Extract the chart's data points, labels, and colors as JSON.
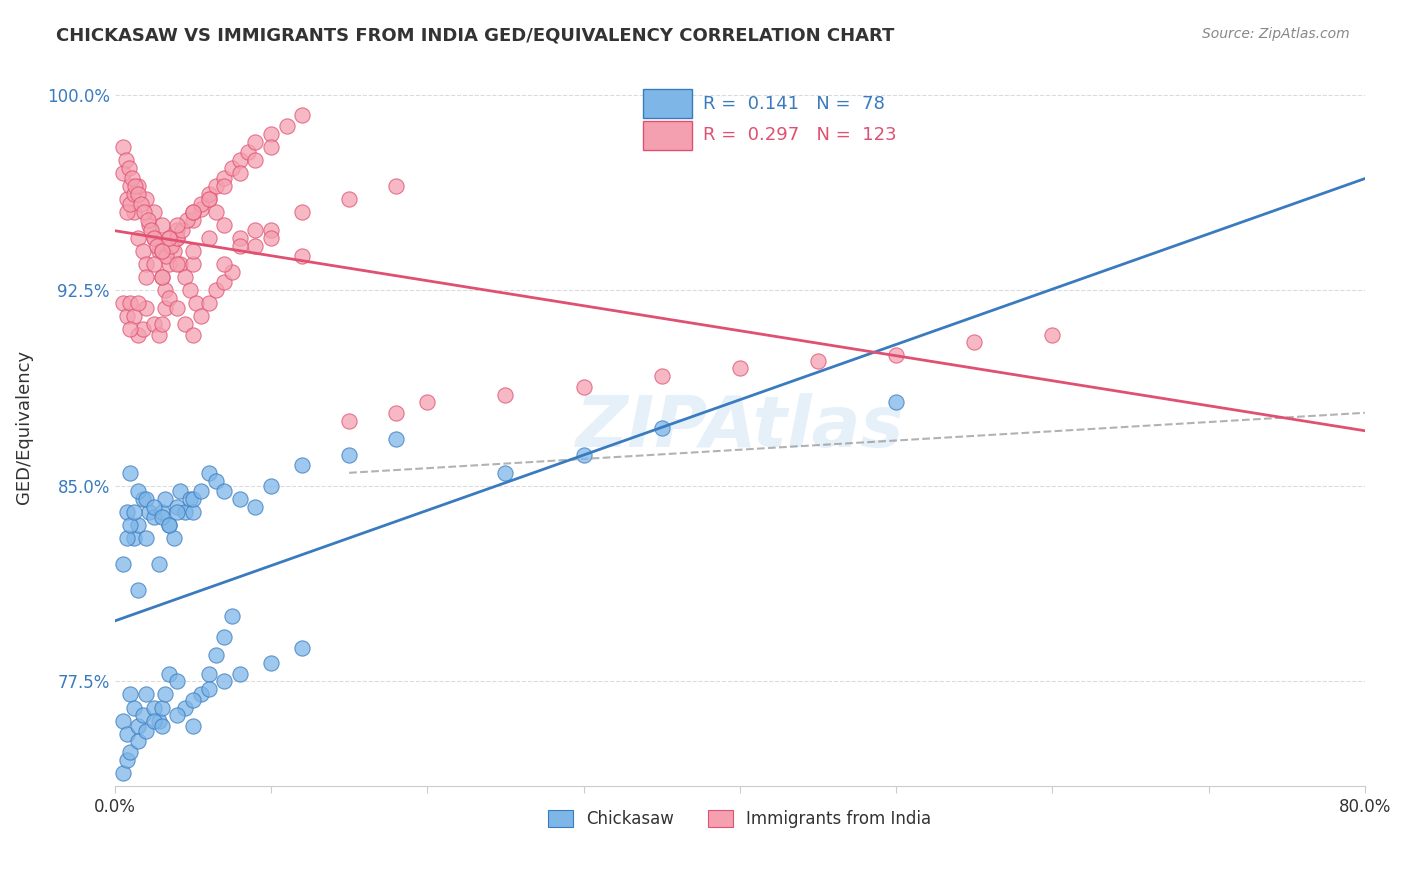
{
  "title": "CHICKASAW VS IMMIGRANTS FROM INDIA GED/EQUIVALENCY CORRELATION CHART",
  "source": "Source: ZipAtlas.com",
  "ylabel": "GED/Equivalency",
  "xlabel": "",
  "xlim": [
    0.0,
    0.8
  ],
  "ylim": [
    0.735,
    1.01
  ],
  "yticks": [
    0.775,
    0.85,
    0.925,
    1.0
  ],
  "ytick_labels": [
    "77.5%",
    "85.0%",
    "92.5%",
    "100.0%"
  ],
  "xticks": [
    0.0,
    0.1,
    0.2,
    0.3,
    0.4,
    0.5,
    0.6,
    0.7,
    0.8
  ],
  "xtick_labels": [
    "0.0%",
    "",
    "",
    "",
    "",
    "",
    "",
    "",
    "80.0%"
  ],
  "blue_R": 0.141,
  "blue_N": 78,
  "pink_R": 0.297,
  "pink_N": 123,
  "blue_color": "#7eb6e8",
  "pink_color": "#f4a0b0",
  "blue_line_color": "#3a7bbf",
  "pink_line_color": "#e05070",
  "legend_blue_label": "Chickasaw",
  "legend_pink_label": "Immigrants from India",
  "watermark": "ZIPAtlas",
  "blue_scatter_x": [
    0.005,
    0.008,
    0.01,
    0.012,
    0.015,
    0.015,
    0.018,
    0.02,
    0.022,
    0.025,
    0.028,
    0.03,
    0.032,
    0.035,
    0.038,
    0.04,
    0.042,
    0.045,
    0.048,
    0.05,
    0.005,
    0.008,
    0.01,
    0.012,
    0.015,
    0.018,
    0.02,
    0.025,
    0.028,
    0.03,
    0.032,
    0.035,
    0.04,
    0.045,
    0.05,
    0.055,
    0.06,
    0.065,
    0.07,
    0.075,
    0.008,
    0.01,
    0.012,
    0.015,
    0.02,
    0.025,
    0.03,
    0.035,
    0.04,
    0.05,
    0.055,
    0.06,
    0.065,
    0.07,
    0.08,
    0.09,
    0.1,
    0.12,
    0.15,
    0.18,
    0.005,
    0.008,
    0.01,
    0.015,
    0.02,
    0.025,
    0.03,
    0.04,
    0.05,
    0.06,
    0.07,
    0.08,
    0.1,
    0.12,
    0.25,
    0.3,
    0.35,
    0.5
  ],
  "blue_scatter_y": [
    0.82,
    0.84,
    0.855,
    0.83,
    0.81,
    0.835,
    0.845,
    0.83,
    0.84,
    0.838,
    0.82,
    0.84,
    0.845,
    0.835,
    0.83,
    0.842,
    0.848,
    0.84,
    0.845,
    0.84,
    0.76,
    0.755,
    0.77,
    0.765,
    0.758,
    0.762,
    0.77,
    0.765,
    0.76,
    0.765,
    0.77,
    0.778,
    0.775,
    0.765,
    0.758,
    0.77,
    0.778,
    0.785,
    0.792,
    0.8,
    0.83,
    0.835,
    0.84,
    0.848,
    0.845,
    0.842,
    0.838,
    0.835,
    0.84,
    0.845,
    0.848,
    0.855,
    0.852,
    0.848,
    0.845,
    0.842,
    0.85,
    0.858,
    0.862,
    0.868,
    0.74,
    0.745,
    0.748,
    0.752,
    0.756,
    0.76,
    0.758,
    0.762,
    0.768,
    0.772,
    0.775,
    0.778,
    0.782,
    0.788,
    0.855,
    0.862,
    0.872,
    0.882
  ],
  "pink_scatter_x": [
    0.005,
    0.008,
    0.01,
    0.012,
    0.015,
    0.018,
    0.02,
    0.022,
    0.025,
    0.028,
    0.03,
    0.032,
    0.035,
    0.038,
    0.04,
    0.042,
    0.045,
    0.048,
    0.05,
    0.052,
    0.005,
    0.008,
    0.01,
    0.012,
    0.015,
    0.018,
    0.02,
    0.025,
    0.028,
    0.03,
    0.032,
    0.035,
    0.04,
    0.045,
    0.05,
    0.055,
    0.06,
    0.065,
    0.07,
    0.075,
    0.008,
    0.01,
    0.012,
    0.015,
    0.02,
    0.025,
    0.03,
    0.035,
    0.04,
    0.05,
    0.055,
    0.06,
    0.065,
    0.07,
    0.08,
    0.09,
    0.1,
    0.12,
    0.15,
    0.18,
    0.005,
    0.007,
    0.009,
    0.011,
    0.013,
    0.015,
    0.017,
    0.019,
    0.021,
    0.023,
    0.025,
    0.027,
    0.03,
    0.033,
    0.036,
    0.04,
    0.043,
    0.046,
    0.05,
    0.055,
    0.06,
    0.065,
    0.07,
    0.075,
    0.08,
    0.085,
    0.09,
    0.1,
    0.11,
    0.12,
    0.03,
    0.04,
    0.05,
    0.06,
    0.07,
    0.08,
    0.09,
    0.1,
    0.12,
    0.15,
    0.18,
    0.2,
    0.25,
    0.3,
    0.35,
    0.4,
    0.45,
    0.5,
    0.55,
    0.6,
    0.01,
    0.015,
    0.02,
    0.025,
    0.03,
    0.035,
    0.04,
    0.05,
    0.06,
    0.07,
    0.08,
    0.09,
    0.1
  ],
  "pink_scatter_y": [
    0.97,
    0.96,
    0.965,
    0.955,
    0.945,
    0.94,
    0.935,
    0.95,
    0.945,
    0.94,
    0.93,
    0.925,
    0.935,
    0.94,
    0.945,
    0.935,
    0.93,
    0.925,
    0.935,
    0.92,
    0.92,
    0.915,
    0.92,
    0.915,
    0.908,
    0.91,
    0.918,
    0.912,
    0.908,
    0.912,
    0.918,
    0.922,
    0.918,
    0.912,
    0.908,
    0.915,
    0.92,
    0.925,
    0.928,
    0.932,
    0.955,
    0.958,
    0.962,
    0.965,
    0.96,
    0.955,
    0.95,
    0.945,
    0.948,
    0.952,
    0.956,
    0.96,
    0.955,
    0.95,
    0.945,
    0.942,
    0.948,
    0.955,
    0.96,
    0.965,
    0.98,
    0.975,
    0.972,
    0.968,
    0.965,
    0.962,
    0.958,
    0.955,
    0.952,
    0.948,
    0.945,
    0.942,
    0.94,
    0.938,
    0.942,
    0.945,
    0.948,
    0.952,
    0.955,
    0.958,
    0.962,
    0.965,
    0.968,
    0.972,
    0.975,
    0.978,
    0.982,
    0.985,
    0.988,
    0.992,
    0.93,
    0.935,
    0.94,
    0.945,
    0.935,
    0.942,
    0.948,
    0.945,
    0.938,
    0.875,
    0.878,
    0.882,
    0.885,
    0.888,
    0.892,
    0.895,
    0.898,
    0.9,
    0.905,
    0.908,
    0.91,
    0.92,
    0.93,
    0.935,
    0.94,
    0.945,
    0.95,
    0.955,
    0.96,
    0.965,
    0.97,
    0.975,
    0.98
  ]
}
